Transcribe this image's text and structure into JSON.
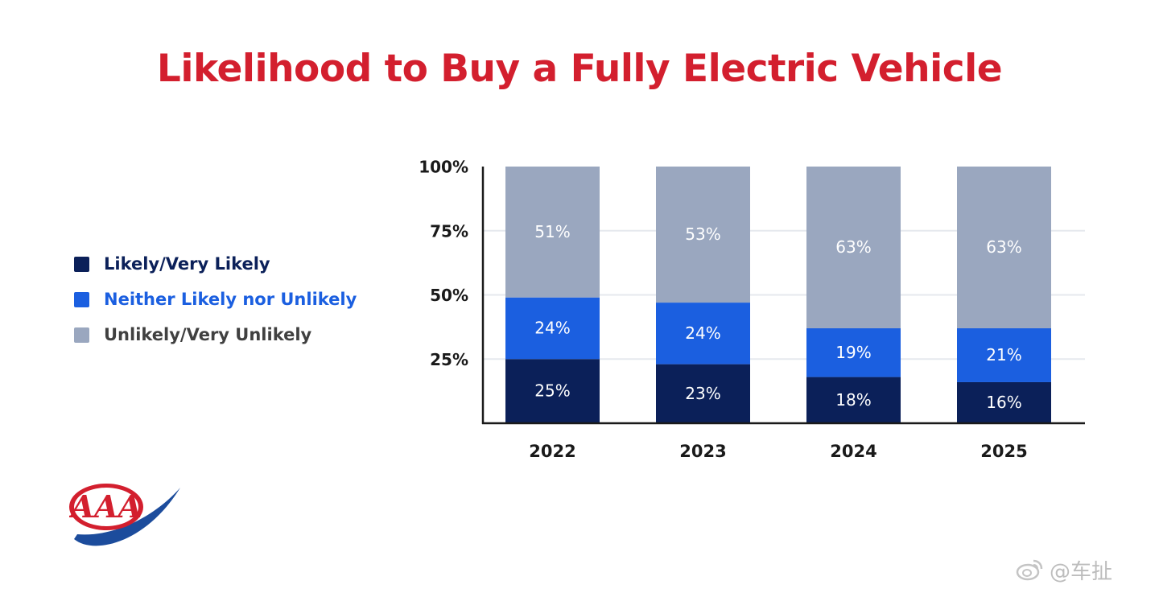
{
  "title": "Likelihood to Buy a Fully Electric Vehicle",
  "legend": [
    {
      "label": "Likely/Very Likely",
      "color": "#0b2059",
      "text_color": "#0b2059"
    },
    {
      "label": "Neither Likely nor Unlikely",
      "color": "#1b5fe0",
      "text_color": "#1b5fe0"
    },
    {
      "label": "Unlikely/Very Unlikely",
      "color": "#9aa7bf",
      "text_color": "#404040"
    }
  ],
  "watermark": "@车扯",
  "colors": {
    "title": "#d31f2e",
    "likely": "#0b2059",
    "neither": "#1b5fe0",
    "unlikely": "#9aa7bf",
    "axis": "#1a1a1a",
    "grid": "#e6e9ee",
    "logo_red": "#d31f2e",
    "logo_blue": "#1c4c9c"
  },
  "logo": {
    "text": "AAA"
  },
  "chart_data": {
    "type": "bar",
    "stacked": true,
    "categories": [
      "2022",
      "2023",
      "2024",
      "2025"
    ],
    "series": [
      {
        "name": "Likely/Very Likely",
        "values": [
          25,
          23,
          18,
          16
        ],
        "labels": [
          "25%",
          "23%",
          "18%",
          "16%"
        ]
      },
      {
        "name": "Neither Likely nor Unlikely",
        "values": [
          24,
          24,
          19,
          21
        ],
        "labels": [
          "24%",
          "24%",
          "19%",
          "21%"
        ]
      },
      {
        "name": "Unlikely/Very Unlikely",
        "values": [
          51,
          53,
          63,
          63
        ],
        "labels": [
          "51%",
          "53%",
          "63%",
          "63%"
        ]
      }
    ],
    "ylim": [
      0,
      100
    ],
    "yticks": [
      {
        "value": 25,
        "label": "25%"
      },
      {
        "value": 50,
        "label": "50%"
      },
      {
        "value": 75,
        "label": "75%"
      },
      {
        "value": 100,
        "label": "100%"
      }
    ],
    "grid": true,
    "legend_position": "left"
  }
}
